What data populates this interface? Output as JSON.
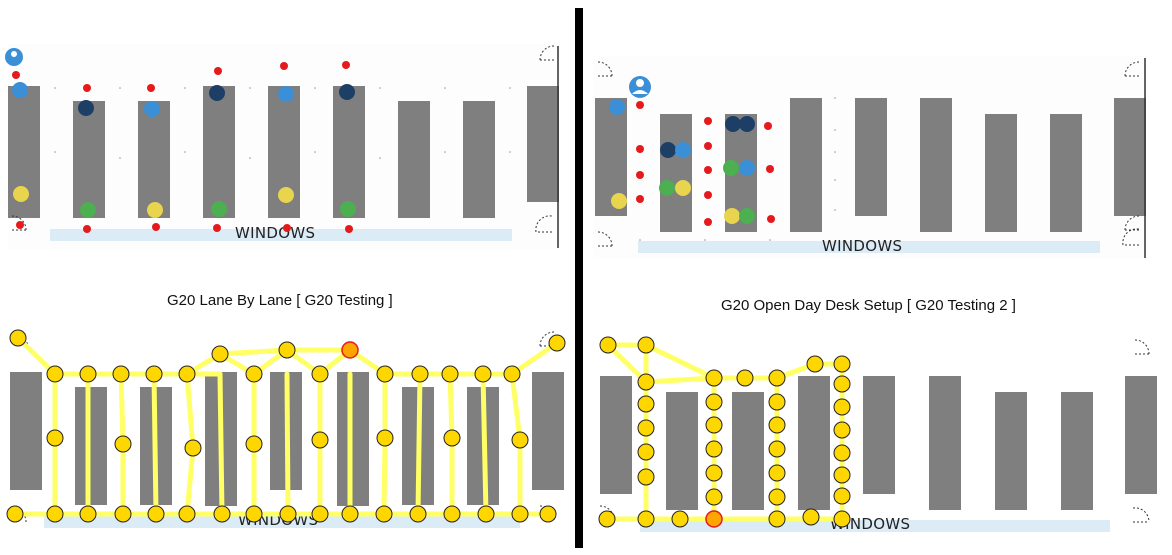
{
  "panels": [
    {
      "id": "tl",
      "window_label": "WINDOWS"
    },
    {
      "id": "tr",
      "window_label": "WINDOWS"
    },
    {
      "id": "bl",
      "window_label": "WINDOWS"
    },
    {
      "id": "br",
      "window_label": "WINDOWS"
    }
  ],
  "captions": {
    "left": "G20 Lane By Lane [ G20 Testing ]",
    "right": "G20 Open Day Desk Setup [ G20 Testing 2 ]"
  },
  "legend_colors": {
    "desk": "#7f7f7f",
    "red_marker": "#e41a1c",
    "light_blue_person": "#3a8fd6",
    "dark_blue_person": "#1d3f66",
    "green_person": "#4caf50",
    "yellow_person": "#e8d44d",
    "path_line": "#ffff66",
    "waypoint": "#ffd700",
    "window": "#dcecf7"
  },
  "icons": [
    "door-swing-icon",
    "person-icon"
  ]
}
